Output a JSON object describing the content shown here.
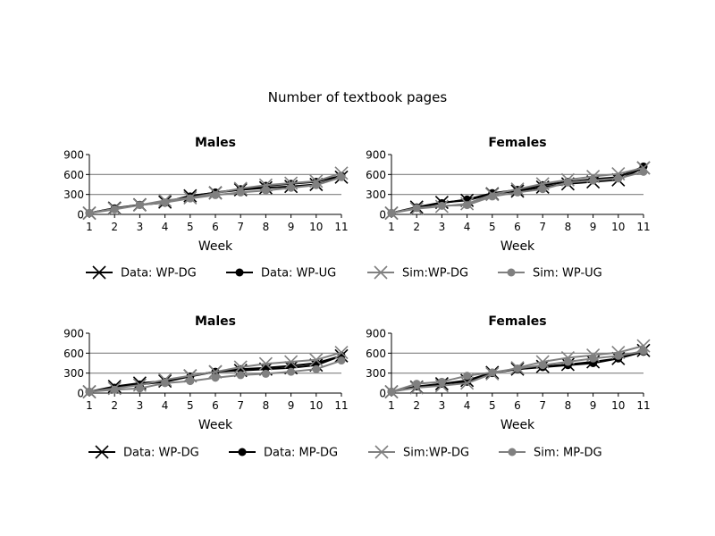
{
  "figure_title": "Number of textbook pages",
  "colors": {
    "data": "#000000",
    "sim": "#808080",
    "ref_line": "#808080",
    "axis": "#000000"
  },
  "legends": [
    {
      "entries": [
        {
          "label": "Data: WP-DG",
          "marker": "x",
          "color": "#000000"
        },
        {
          "label": "Data: WP-UG",
          "marker": "o",
          "color": "#000000"
        },
        {
          "label": "Sim:WP-DG",
          "marker": "x",
          "color": "#808080"
        },
        {
          "label": "Sim: WP-UG",
          "marker": "o",
          "color": "#808080"
        }
      ]
    },
    {
      "entries": [
        {
          "label": "Data: WP-DG",
          "marker": "x",
          "color": "#000000"
        },
        {
          "label": "Data: MP-DG",
          "marker": "o",
          "color": "#000000"
        },
        {
          "label": "Sim:WP-DG",
          "marker": "x",
          "color": "#808080"
        },
        {
          "label": "Sim: MP-DG",
          "marker": "o",
          "color": "#808080"
        }
      ]
    }
  ],
  "chart_data": [
    {
      "type": "line",
      "title": "Males",
      "xlabel": "Week",
      "ylabel": "",
      "x": [
        1,
        2,
        3,
        4,
        5,
        6,
        7,
        8,
        9,
        10,
        11
      ],
      "xlim": [
        1,
        11
      ],
      "ylim": [
        0,
        900
      ],
      "yticks": [
        0,
        300,
        600,
        900
      ],
      "ref_lines": [
        300,
        600
      ],
      "legend_group": 0,
      "series": [
        {
          "name": "Data: WP-DG",
          "marker": "x",
          "color": "#000000",
          "values": [
            20,
            95,
            145,
            185,
            280,
            325,
            370,
            400,
            420,
            450,
            560
          ]
        },
        {
          "name": "Data: WP-UG",
          "marker": "o",
          "color": "#000000",
          "values": [
            20,
            90,
            145,
            175,
            270,
            330,
            380,
            430,
            460,
            490,
            580
          ]
        },
        {
          "name": "Sim:WP-DG",
          "marker": "x",
          "color": "#808080",
          "values": [
            20,
            85,
            140,
            210,
            250,
            320,
            390,
            440,
            470,
            500,
            620
          ]
        },
        {
          "name": "Sim: WP-UG",
          "marker": "o",
          "color": "#808080",
          "values": [
            20,
            75,
            140,
            180,
            240,
            290,
            330,
            360,
            400,
            440,
            560
          ]
        }
      ]
    },
    {
      "type": "line",
      "title": "Females",
      "xlabel": "Week",
      "ylabel": "",
      "x": [
        1,
        2,
        3,
        4,
        5,
        6,
        7,
        8,
        9,
        10,
        11
      ],
      "xlim": [
        1,
        11
      ],
      "ylim": [
        0,
        900
      ],
      "yticks": [
        0,
        300,
        600,
        900
      ],
      "ref_lines": [
        300,
        600
      ],
      "legend_group": 0,
      "series": [
        {
          "name": "Data: WP-DG",
          "marker": "x",
          "color": "#000000",
          "values": [
            20,
            110,
            180,
            210,
            310,
            350,
            410,
            460,
            490,
            520,
            700
          ]
        },
        {
          "name": "Data: WP-UG",
          "marker": "o",
          "color": "#000000",
          "values": [
            20,
            105,
            170,
            225,
            320,
            370,
            440,
            490,
            530,
            560,
            720
          ]
        },
        {
          "name": "Sim:WP-DG",
          "marker": "x",
          "color": "#808080",
          "values": [
            20,
            85,
            120,
            160,
            300,
            380,
            460,
            520,
            570,
            610,
            700
          ]
        },
        {
          "name": "Sim: WP-UG",
          "marker": "o",
          "color": "#808080",
          "values": [
            20,
            95,
            130,
            140,
            270,
            330,
            380,
            480,
            510,
            540,
            640
          ]
        }
      ]
    },
    {
      "type": "line",
      "title": "Males",
      "xlabel": "Week",
      "ylabel": "",
      "x": [
        1,
        2,
        3,
        4,
        5,
        6,
        7,
        8,
        9,
        10,
        11
      ],
      "xlim": [
        1,
        11
      ],
      "ylim": [
        0,
        900
      ],
      "yticks": [
        0,
        300,
        600,
        900
      ],
      "ref_lines": [
        300,
        600
      ],
      "legend_group": 1,
      "series": [
        {
          "name": "Data: WP-DG",
          "marker": "x",
          "color": "#000000",
          "values": [
            20,
            100,
            150,
            180,
            260,
            320,
            340,
            360,
            380,
            420,
            560
          ]
        },
        {
          "name": "Data: MP-DG",
          "marker": "o",
          "color": "#000000",
          "values": [
            20,
            80,
            130,
            170,
            250,
            320,
            360,
            380,
            410,
            450,
            560
          ]
        },
        {
          "name": "Sim:WP-DG",
          "marker": "x",
          "color": "#808080",
          "values": [
            20,
            70,
            120,
            200,
            260,
            320,
            390,
            440,
            470,
            500,
            610
          ]
        },
        {
          "name": "Sim: MP-DG",
          "marker": "o",
          "color": "#808080",
          "values": [
            20,
            50,
            70,
            150,
            180,
            230,
            270,
            290,
            320,
            360,
            490
          ]
        }
      ]
    },
    {
      "type": "line",
      "title": "Females",
      "xlabel": "Week",
      "ylabel": "",
      "x": [
        1,
        2,
        3,
        4,
        5,
        6,
        7,
        8,
        9,
        10,
        11
      ],
      "xlim": [
        1,
        11
      ],
      "ylim": [
        0,
        900
      ],
      "yticks": [
        0,
        300,
        600,
        900
      ],
      "ref_lines": [
        300,
        600
      ],
      "legend_group": 1,
      "series": [
        {
          "name": "Data: WP-DG",
          "marker": "x",
          "color": "#000000",
          "values": [
            20,
            90,
            140,
            190,
            310,
            360,
            400,
            430,
            470,
            520,
            640
          ]
        },
        {
          "name": "Data: MP-DG",
          "marker": "o",
          "color": "#000000",
          "values": [
            20,
            100,
            140,
            170,
            300,
            360,
            390,
            420,
            450,
            520,
            620
          ]
        },
        {
          "name": "Sim:WP-DG",
          "marker": "x",
          "color": "#808080",
          "values": [
            20,
            80,
            110,
            150,
            290,
            380,
            470,
            530,
            570,
            610,
            710
          ]
        },
        {
          "name": "Sim: MP-DG",
          "marker": "o",
          "color": "#808080",
          "values": [
            20,
            140,
            170,
            260,
            310,
            370,
            420,
            470,
            520,
            560,
            630
          ]
        }
      ]
    }
  ]
}
